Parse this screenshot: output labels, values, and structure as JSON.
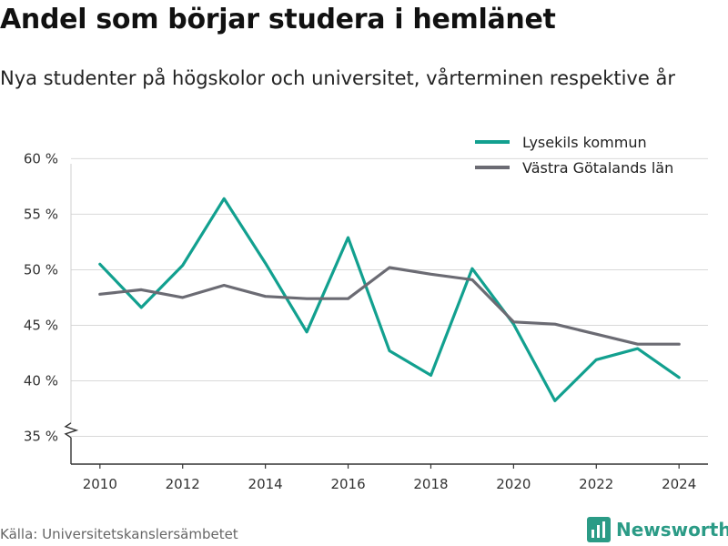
{
  "header": {
    "title": "Andel som börjar studera i hemlänet",
    "subtitle": "Nya studenter på högskolor och universitet, vårterminen respektive år"
  },
  "footer": {
    "source": "Källa: Universitetskanslersämbetet",
    "brand": "Newsworthy",
    "brand_color": "#2b9b86"
  },
  "chart_data": {
    "type": "line",
    "title": "Andel som börjar studera i hemlänet",
    "subtitle": "Nya studenter på högskolor och universitet, vårterminen respektive år",
    "xlabel": "",
    "ylabel": "",
    "x": [
      2010,
      2011,
      2012,
      2013,
      2014,
      2015,
      2016,
      2017,
      2018,
      2019,
      2020,
      2021,
      2022,
      2023,
      2024
    ],
    "xticks": [
      2010,
      2012,
      2014,
      2016,
      2018,
      2020,
      2022,
      2024
    ],
    "yticks": [
      35,
      40,
      45,
      50,
      55,
      60
    ],
    "ytick_labels": [
      "35 %",
      "40 %",
      "45 %",
      "50 %",
      "55 %",
      "60 %"
    ],
    "ylim": [
      32.5,
      62
    ],
    "xlim": [
      2009.3,
      2024.7
    ],
    "y_axis_break": true,
    "grid": true,
    "legend_position": "top-right",
    "series": [
      {
        "name": "Lysekils kommun",
        "color": "#12a08f",
        "values": [
          50.5,
          46.6,
          50.4,
          56.4,
          50.6,
          44.4,
          52.9,
          42.7,
          40.5,
          50.1,
          45.1,
          38.2,
          41.9,
          42.9,
          40.3
        ]
      },
      {
        "name": "Västra Götalands län",
        "color": "#6b6b73",
        "values": [
          47.8,
          48.2,
          47.5,
          48.6,
          47.6,
          47.4,
          47.4,
          50.2,
          49.6,
          49.1,
          45.3,
          45.1,
          44.2,
          43.3,
          43.3
        ]
      }
    ]
  }
}
